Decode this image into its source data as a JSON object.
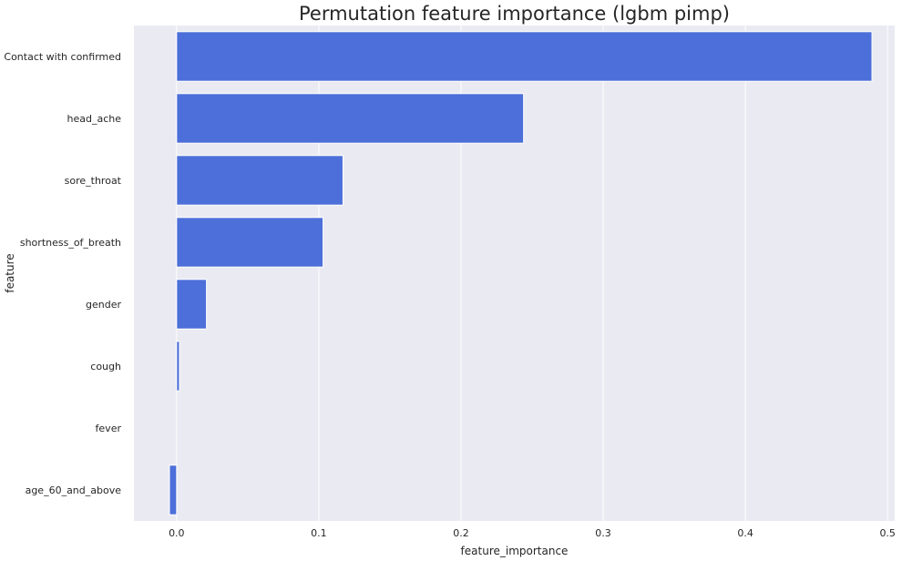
{
  "chart_data": {
    "type": "bar",
    "orientation": "horizontal",
    "title": "Permutation feature importance (lgbm pimp)",
    "xlabel": "feature_importance",
    "ylabel": "feature",
    "categories": [
      "Contact with confirmed",
      "head_ache",
      "sore_throat",
      "shortness_of_breath",
      "gender",
      "cough",
      "fever",
      "age_60_and_above"
    ],
    "values": [
      0.489,
      0.244,
      0.117,
      0.103,
      0.021,
      0.002,
      0.0,
      -0.005
    ],
    "xlim": [
      -0.03,
      0.505
    ],
    "xticks": [
      0.0,
      0.1,
      0.2,
      0.3,
      0.4,
      0.5
    ],
    "xtick_labels": [
      "0.0",
      "0.1",
      "0.2",
      "0.3",
      "0.4",
      "0.5"
    ],
    "grid": true,
    "bar_color": "#4c6fd9",
    "background_color": "#eaeaf2",
    "grid_color": "#ffffff"
  }
}
